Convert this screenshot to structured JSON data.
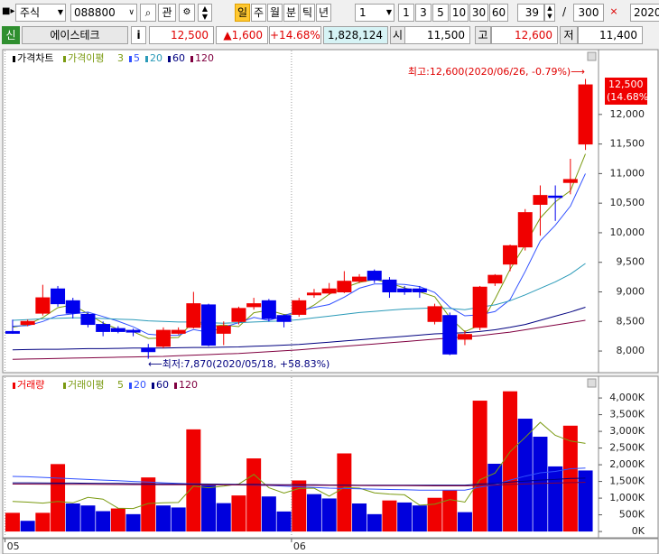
{
  "toolbar": {
    "market": "주식",
    "code": "088800",
    "watch": "관",
    "periods": [
      "일",
      "주",
      "월",
      "분",
      "틱",
      "년"
    ],
    "period_count": "1",
    "intervals": [
      "1",
      "3",
      "5",
      "10",
      "30",
      "60"
    ],
    "shown": "39",
    "separator": "/",
    "total": "300",
    "date": "2020/"
  },
  "quote": {
    "badge": "신",
    "name": "에이스테크",
    "info": "i",
    "price": "12,500",
    "change": "▲1,600",
    "change_rate": "+14.68%",
    "volume": "1,828,124",
    "open_label": "시",
    "open": "11,500",
    "high_label": "고",
    "high": "12,600",
    "low_label": "저",
    "low": "11,400"
  },
  "chart_data": [
    {
      "type": "candlestick",
      "legend_title": "가격차트",
      "ma_title": "가격이평",
      "open": [
        8330,
        8450,
        8640,
        9050,
        8850,
        8620,
        8450,
        8380,
        8350,
        8050,
        8080,
        8300,
        8400,
        8780,
        8300,
        8500,
        8750,
        8850,
        8600,
        8620,
        8950,
        8980,
        9000,
        9180,
        9350,
        9200,
        9050,
        9050,
        8500,
        8600,
        8200,
        8400,
        9150,
        9470,
        9760,
        10480,
        10620,
        10850,
        11500
      ],
      "high": [
        8530,
        8530,
        9120,
        9100,
        8900,
        8650,
        8500,
        8420,
        8380,
        8120,
        8400,
        8400,
        9000,
        8800,
        8500,
        8750,
        8900,
        8880,
        8620,
        8900,
        9050,
        9150,
        9350,
        9300,
        9380,
        9250,
        9100,
        9100,
        8800,
        8650,
        8350,
        9100,
        9300,
        9800,
        10400,
        10800,
        10800,
        11250,
        12600
      ],
      "low": [
        8290,
        8420,
        8600,
        8750,
        8550,
        8400,
        8250,
        8300,
        8250,
        7870,
        8050,
        8280,
        8380,
        8080,
        8100,
        8450,
        8700,
        8500,
        8400,
        8580,
        8900,
        8950,
        8980,
        9150,
        9150,
        8900,
        8950,
        8900,
        8450,
        7930,
        8100,
        8350,
        9100,
        9350,
        9700,
        9950,
        10200,
        10650,
        11400
      ],
      "close": [
        8300,
        8500,
        8900,
        8800,
        8640,
        8450,
        8330,
        8330,
        8320,
        7990,
        8350,
        8350,
        8800,
        8100,
        8420,
        8720,
        8800,
        8550,
        8500,
        8850,
        8980,
        9050,
        9180,
        9250,
        9200,
        9000,
        9000,
        9000,
        8750,
        7950,
        8280,
        9080,
        9280,
        9780,
        10340,
        10630,
        10600,
        10900,
        12500
      ],
      "up_color": "#f00000",
      "down_color": "#0000ee",
      "series": [
        {
          "name": "3",
          "color": "#7a9a10",
          "values": [
            8400,
            8450,
            8567,
            8733,
            8780,
            8630,
            8473,
            8370,
            8327,
            8213,
            8220,
            8230,
            8500,
            8417,
            8440,
            8413,
            8647,
            8690,
            8617,
            8633,
            8777,
            8960,
            9070,
            9160,
            9210,
            9150,
            9067,
            9000,
            8917,
            8567,
            8327,
            8437,
            8880,
            9380,
            9800,
            10250,
            10523,
            10710,
            11333
          ]
        },
        {
          "name": "5",
          "color": "#3050ff",
          "values": [
            8420,
            8430,
            8500,
            8600,
            8628,
            8658,
            8584,
            8504,
            8410,
            8284,
            8264,
            8268,
            8362,
            8318,
            8404,
            8478,
            8568,
            8518,
            8598,
            8684,
            8736,
            8786,
            8912,
            9062,
            9132,
            9136,
            9126,
            9090,
            8990,
            8740,
            8596,
            8612,
            8668,
            8868,
            9346,
            9862,
            10126,
            10450,
            11000
          ]
        },
        {
          "name": "20",
          "color": "#2a9ab8",
          "values": [
            8520,
            8530,
            8545,
            8555,
            8560,
            8560,
            8550,
            8540,
            8530,
            8510,
            8500,
            8490,
            8490,
            8480,
            8470,
            8480,
            8490,
            8500,
            8510,
            8530,
            8560,
            8590,
            8620,
            8650,
            8670,
            8690,
            8710,
            8720,
            8730,
            8720,
            8700,
            8740,
            8780,
            8850,
            8950,
            9060,
            9170,
            9300,
            9480
          ]
        },
        {
          "name": "60",
          "color": "#000080",
          "values": [
            8020,
            8025,
            8030,
            8030,
            8035,
            8040,
            8040,
            8045,
            8050,
            8050,
            8050,
            8055,
            8060,
            8060,
            8065,
            8070,
            8080,
            8090,
            8100,
            8110,
            8130,
            8150,
            8170,
            8190,
            8210,
            8230,
            8250,
            8270,
            8290,
            8300,
            8310,
            8330,
            8360,
            8400,
            8450,
            8520,
            8590,
            8660,
            8740
          ]
        },
        {
          "name": "120",
          "color": "#800040",
          "values": [
            7860,
            7865,
            7870,
            7875,
            7880,
            7885,
            7890,
            7895,
            7900,
            7905,
            7910,
            7920,
            7930,
            7940,
            7950,
            7960,
            7975,
            7990,
            8005,
            8020,
            8040,
            8060,
            8080,
            8100,
            8120,
            8140,
            8160,
            8180,
            8200,
            8220,
            8240,
            8260,
            8290,
            8320,
            8360,
            8400,
            8440,
            8480,
            8520
          ]
        }
      ],
      "ylim": [
        7650,
        13050
      ],
      "yticks": [
        {
          "value": 8000,
          "label": "8,000"
        },
        {
          "value": 8500,
          "label": "8,500"
        },
        {
          "value": 9000,
          "label": "9,000"
        },
        {
          "value": 9500,
          "label": "9,500"
        },
        {
          "value": 10000,
          "label": "10,000"
        },
        {
          "value": 10500,
          "label": "10,500"
        },
        {
          "value": 11000,
          "label": "11,000"
        },
        {
          "value": 11500,
          "label": "11,500"
        },
        {
          "value": 12000,
          "label": "12,000"
        }
      ],
      "high_annotation": "최고:12,600(2020/06/26, -0.79%)⟶",
      "low_annotation": "⟵최저:7,870(2020/05/18, +58.83%)",
      "last_price_label": "12,500",
      "last_change_label": "(14.68%)"
    },
    {
      "type": "bar",
      "legend_title": "거래량",
      "ma_title": "거래이평",
      "categories": [
        "05",
        null,
        null,
        null,
        null,
        null,
        null,
        null,
        null,
        null,
        null,
        null,
        null,
        null,
        null,
        null,
        null,
        null,
        null,
        "06",
        null,
        null,
        null,
        null,
        null,
        null,
        null,
        null,
        null,
        null,
        null,
        null,
        null,
        null,
        null,
        null,
        null,
        null,
        null
      ],
      "values": [
        560000,
        320000,
        560000,
        2020000,
        840000,
        780000,
        610000,
        690000,
        520000,
        1620000,
        780000,
        720000,
        3060000,
        1380000,
        850000,
        1080000,
        2190000,
        1050000,
        600000,
        1530000,
        1120000,
        990000,
        2340000,
        840000,
        520000,
        930000,
        870000,
        780000,
        1010000,
        1230000,
        580000,
        3920000,
        2030000,
        4200000,
        3380000,
        2840000,
        1950000,
        3170000,
        1828124
      ],
      "up_color": "#f00000",
      "down_color": "#0000dd",
      "series": [
        {
          "name": "5",
          "color": "#7a9a10",
          "values": [
            900000,
            880000,
            850000,
            900000,
            860000,
            1020000,
            970000,
            700000,
            690000,
            840000,
            860000,
            870000,
            1360000,
            1310000,
            1360000,
            1420000,
            1710000,
            1310000,
            1150000,
            1290000,
            1300000,
            1060000,
            1320000,
            1300000,
            1160000,
            1120000,
            1100000,
            790000,
            820000,
            960000,
            880000,
            1550000,
            1750000,
            2390000,
            2820000,
            3270000,
            2880000,
            2710000,
            2640000
          ]
        },
        {
          "name": "20",
          "color": "#3050ff",
          "values": [
            1650000,
            1640000,
            1620000,
            1600000,
            1580000,
            1560000,
            1540000,
            1520000,
            1500000,
            1480000,
            1460000,
            1440000,
            1430000,
            1420000,
            1410000,
            1400000,
            1390000,
            1380000,
            1360000,
            1340000,
            1320000,
            1300000,
            1290000,
            1280000,
            1270000,
            1260000,
            1250000,
            1240000,
            1240000,
            1240000,
            1240000,
            1330000,
            1400000,
            1540000,
            1660000,
            1760000,
            1800000,
            1880000,
            1900000
          ]
        },
        {
          "name": "60",
          "color": "#000080",
          "values": [
            1460000,
            1460000,
            1455000,
            1450000,
            1450000,
            1445000,
            1440000,
            1440000,
            1435000,
            1430000,
            1430000,
            1425000,
            1420000,
            1420000,
            1415000,
            1410000,
            1410000,
            1405000,
            1400000,
            1400000,
            1400000,
            1395000,
            1395000,
            1390000,
            1390000,
            1390000,
            1385000,
            1385000,
            1385000,
            1390000,
            1390000,
            1420000,
            1440000,
            1480000,
            1510000,
            1540000,
            1560000,
            1590000,
            1600000
          ]
        },
        {
          "name": "120",
          "color": "#800040",
          "values": [
            1420000,
            1420000,
            1418000,
            1416000,
            1414000,
            1412000,
            1410000,
            1408000,
            1406000,
            1404000,
            1402000,
            1400000,
            1400000,
            1398000,
            1396000,
            1394000,
            1392000,
            1390000,
            1388000,
            1386000,
            1384000,
            1382000,
            1380000,
            1378000,
            1376000,
            1374000,
            1372000,
            1370000,
            1368000,
            1366000,
            1366000,
            1380000,
            1392000,
            1410000,
            1425000,
            1440000,
            1452000,
            1465000,
            1475000
          ]
        }
      ],
      "ylim": [
        -160000,
        4570000
      ],
      "yticks": [
        {
          "value": 0,
          "label": "0K"
        },
        {
          "value": 500000,
          "label": "500K"
        },
        {
          "value": 1000000,
          "label": "1,000K"
        },
        {
          "value": 1500000,
          "label": "1,500K"
        },
        {
          "value": 2000000,
          "label": "2,000K"
        },
        {
          "value": 2500000,
          "label": "2,500K"
        },
        {
          "value": 3000000,
          "label": "3,000K"
        },
        {
          "value": 3500000,
          "label": "3,500K"
        },
        {
          "value": 4000000,
          "label": "4,000K"
        }
      ]
    }
  ]
}
